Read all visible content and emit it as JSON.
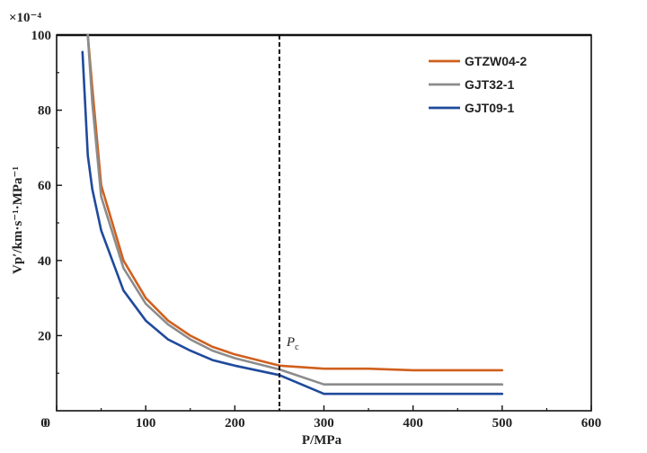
{
  "chart_data": {
    "type": "line",
    "title": "",
    "xlabel": "P/MPa",
    "ylabel": "Vp′/km·s⁻¹·MPa⁻¹",
    "y_multiplier": "×10⁻⁴",
    "xlim": [
      0,
      600
    ],
    "ylim": [
      0,
      100
    ],
    "x_ticks": [
      0,
      100,
      200,
      300,
      400,
      500,
      600
    ],
    "y_ticks": [
      20,
      40,
      60,
      80,
      100
    ],
    "grid": false,
    "legend": "top-right",
    "series": [
      {
        "name": "GTZW04-2",
        "color": "#d0601e",
        "x": [
          35,
          40,
          50,
          75,
          100,
          125,
          150,
          175,
          200,
          250,
          300,
          350,
          400,
          500
        ],
        "y": [
          100,
          86,
          60,
          40,
          30,
          24,
          20,
          17,
          15,
          12,
          11.2,
          11.2,
          10.8,
          10.8
        ]
      },
      {
        "name": "GJT32-1",
        "color": "#8c8c8c",
        "x": [
          35,
          40,
          50,
          75,
          100,
          125,
          150,
          175,
          200,
          250,
          300,
          350,
          400,
          500
        ],
        "y": [
          100,
          82,
          57,
          38,
          28.5,
          23,
          19,
          16,
          14,
          11,
          7,
          7,
          7,
          7
        ]
      },
      {
        "name": "GJT09-1",
        "color": "#1f4a9c",
        "x": [
          29,
          35,
          40,
          50,
          75,
          100,
          125,
          150,
          175,
          200,
          250,
          300,
          350,
          400,
          500
        ],
        "y": [
          95.5,
          68,
          59,
          48,
          32,
          24,
          19,
          16,
          13.5,
          12,
          9.5,
          4.5,
          4.5,
          4.5,
          4.5
        ]
      }
    ],
    "reference_line": {
      "x": 250,
      "label": "P",
      "label_sub": "c",
      "style": "dashed"
    }
  }
}
